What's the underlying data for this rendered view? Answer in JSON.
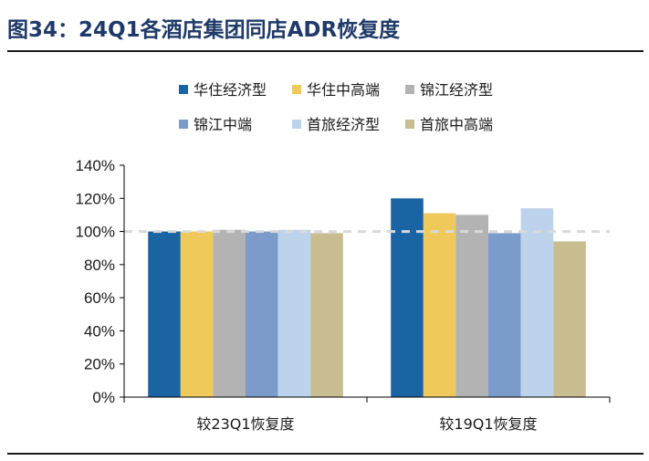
{
  "figure": {
    "title": "图34：24Q1各酒店集团同店ADR恢复度"
  },
  "chart_data": {
    "type": "bar",
    "title": "",
    "xlabel": "",
    "ylabel": "",
    "categories": [
      "较23Q1恢复度",
      "较19Q1恢复度"
    ],
    "series": [
      {
        "name": "华住经济型",
        "color": "#1b64a4",
        "values": [
          100,
          120
        ]
      },
      {
        "name": "华住中高端",
        "color": "#efc95a",
        "values": [
          100,
          111
        ]
      },
      {
        "name": "锦江经济型",
        "color": "#b3b3b3",
        "values": [
          101,
          110
        ]
      },
      {
        "name": "锦江中端",
        "color": "#7b9cca",
        "values": [
          100,
          99
        ]
      },
      {
        "name": "首旅经济型",
        "color": "#bdd3ec",
        "values": [
          101,
          114
        ]
      },
      {
        "name": "首旅中高端",
        "color": "#c7bd91",
        "values": [
          99,
          94
        ]
      }
    ],
    "yticks": [
      "0%",
      "20%",
      "40%",
      "60%",
      "80%",
      "100%",
      "120%",
      "140%"
    ],
    "ylim": [
      0,
      140
    ],
    "reference_line": {
      "value": 100,
      "style": "dashed",
      "color": "#d9d9d9"
    },
    "legend_position": "top",
    "grid": false
  }
}
